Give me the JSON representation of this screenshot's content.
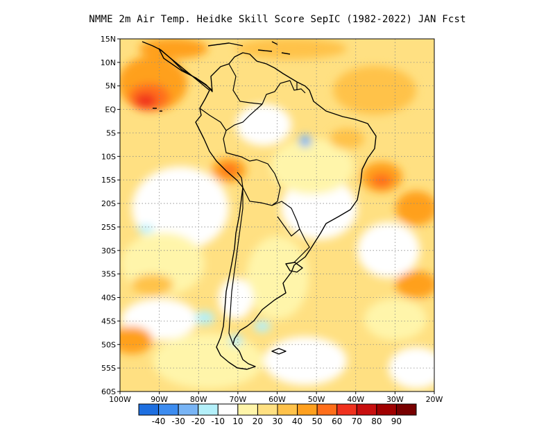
{
  "title": "NMME  2m Air Temp. Heidke Skill Score SepIC (1982-2022) JAN Fcst",
  "chart_data": {
    "type": "heatmap",
    "title": "NMME  2m Air Temp. Heidke Skill Score SepIC (1982-2022) JAN Fcst",
    "xlabel": "",
    "ylabel": "",
    "x_range": [
      -100,
      -20
    ],
    "y_range": [
      -60,
      15
    ],
    "x_ticks": [
      "100W",
      "90W",
      "80W",
      "70W",
      "60W",
      "50W",
      "40W",
      "30W",
      "20W"
    ],
    "y_ticks": [
      "15N",
      "10N",
      "5N",
      "EQ",
      "5S",
      "10S",
      "15S",
      "20S",
      "25S",
      "30S",
      "35S",
      "40S",
      "45S",
      "50S",
      "55S",
      "60S"
    ],
    "grid": true,
    "colorbar": {
      "levels": [
        "-40",
        "-30",
        "-20",
        "-10",
        "10",
        "20",
        "30",
        "40",
        "50",
        "60",
        "70",
        "80",
        "90"
      ],
      "colors": [
        "#1e6fe0",
        "#3c8cf0",
        "#78b4f5",
        "#b4f0fa",
        "#ffffff",
        "#fff5aa",
        "#ffe082",
        "#ffc24a",
        "#ffa01e",
        "#ff6e1a",
        "#f0321e",
        "#c80f0f",
        "#a00000",
        "#780000"
      ]
    }
  }
}
